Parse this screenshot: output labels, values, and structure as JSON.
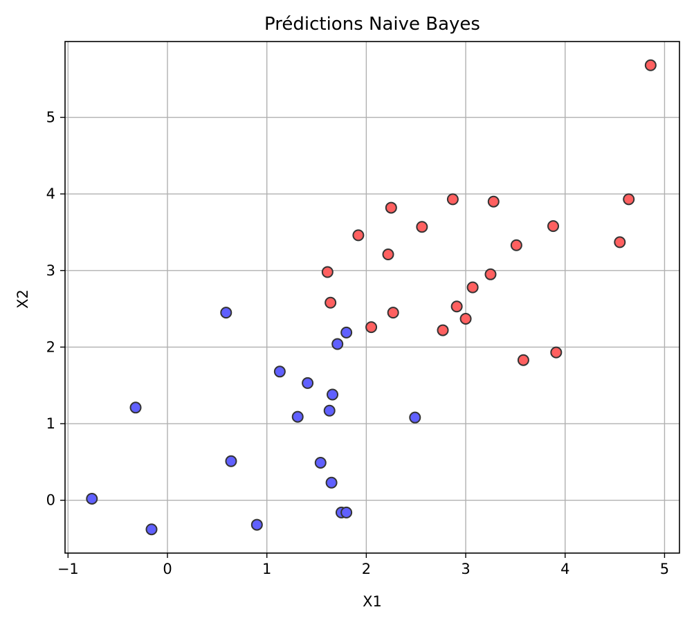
{
  "chart_data": {
    "type": "scatter",
    "title": "Prédictions Naive Bayes",
    "xlabel": "X1",
    "ylabel": "X2",
    "xlim": [
      -1.03,
      5.15
    ],
    "ylim": [
      -0.69,
      5.99
    ],
    "xticks": [
      -1,
      0,
      1,
      2,
      3,
      4,
      5
    ],
    "yticks": [
      0,
      1,
      2,
      3,
      4,
      5
    ],
    "grid": true,
    "colors": {
      "class_0": "#6060ff",
      "class_1": "#ff6060",
      "edge": "#333333"
    },
    "series": [
      {
        "class": 0,
        "color": "#6060ff",
        "points": [
          [
            -0.76,
            0.02
          ],
          [
            -0.32,
            1.21
          ],
          [
            -0.16,
            -0.38
          ],
          [
            0.59,
            2.45
          ],
          [
            0.64,
            0.51
          ],
          [
            0.9,
            -0.32
          ],
          [
            1.13,
            1.68
          ],
          [
            1.31,
            1.09
          ],
          [
            1.41,
            1.53
          ],
          [
            1.54,
            0.49
          ],
          [
            1.63,
            1.17
          ],
          [
            1.65,
            0.23
          ],
          [
            1.66,
            1.38
          ],
          [
            1.71,
            2.04
          ],
          [
            1.75,
            -0.16
          ],
          [
            1.8,
            -0.16
          ],
          [
            1.8,
            2.19
          ],
          [
            2.49,
            1.08
          ]
        ]
      },
      {
        "class": 1,
        "color": "#ff6060",
        "points": [
          [
            1.61,
            2.98
          ],
          [
            1.64,
            2.58
          ],
          [
            1.92,
            3.46
          ],
          [
            2.05,
            2.26
          ],
          [
            2.22,
            3.21
          ],
          [
            2.25,
            3.82
          ],
          [
            2.27,
            2.45
          ],
          [
            2.56,
            3.57
          ],
          [
            2.77,
            2.22
          ],
          [
            2.87,
            3.93
          ],
          [
            2.91,
            2.53
          ],
          [
            3.0,
            2.37
          ],
          [
            3.07,
            2.78
          ],
          [
            3.25,
            2.95
          ],
          [
            3.28,
            3.9
          ],
          [
            3.51,
            3.33
          ],
          [
            3.58,
            1.83
          ],
          [
            3.88,
            3.58
          ],
          [
            3.91,
            1.93
          ],
          [
            4.55,
            3.37
          ],
          [
            4.64,
            3.93
          ],
          [
            4.86,
            5.68
          ]
        ]
      }
    ]
  }
}
